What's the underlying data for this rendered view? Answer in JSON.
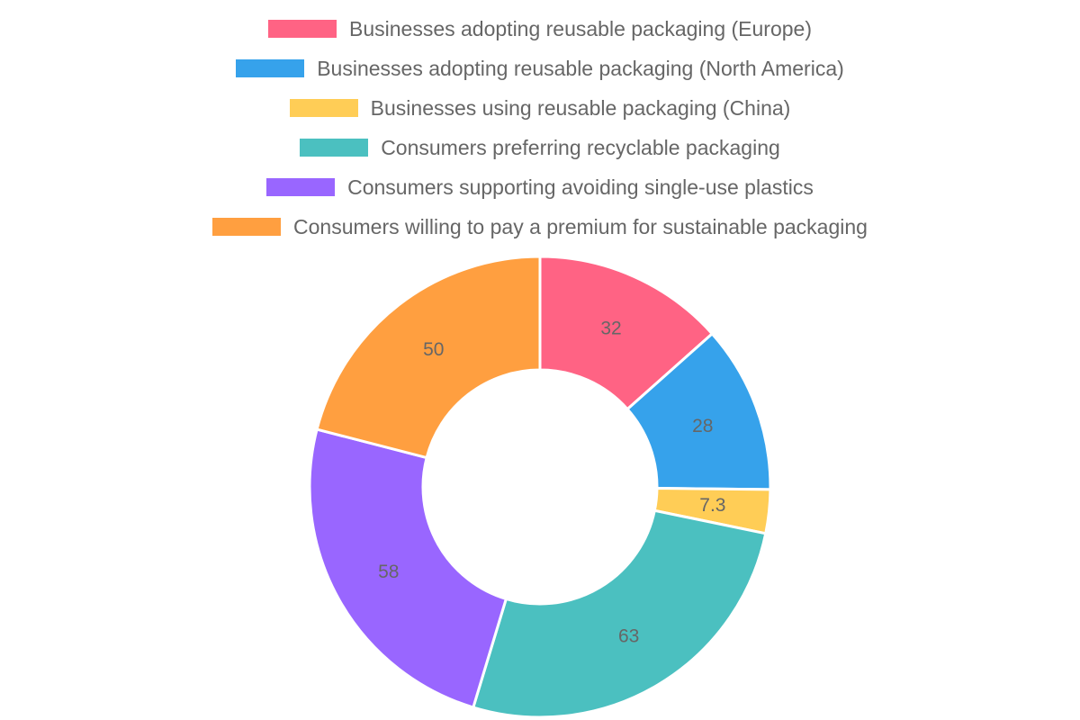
{
  "chart_data": {
    "type": "doughnut",
    "title": "",
    "legend_position": "top",
    "categories": [
      "Businesses adopting reusable packaging (Europe)",
      "Businesses adopting reusable packaging (North America)",
      "Businesses using reusable packaging (China)",
      "Consumers preferring recyclable packaging",
      "Consumers supporting avoiding single-use plastics",
      "Consumers willing to pay a premium for sustainable packaging"
    ],
    "values": [
      32,
      28,
      7.3,
      63,
      58,
      50
    ],
    "value_labels": [
      "32",
      "28",
      "7.3",
      "63",
      "58",
      "50"
    ],
    "colors": [
      "#ff6384",
      "#36a2eb",
      "#ffcd56",
      "#4bc0c0",
      "#9966ff",
      "#ff9f40"
    ]
  },
  "legend": {
    "items": [
      {
        "label": "Businesses adopting reusable packaging (Europe)",
        "color": "#ff6384"
      },
      {
        "label": "Businesses adopting reusable packaging (North America)",
        "color": "#36a2eb"
      },
      {
        "label": "Businesses using reusable packaging (China)",
        "color": "#ffcd56"
      },
      {
        "label": "Consumers preferring recyclable packaging",
        "color": "#4bc0c0"
      },
      {
        "label": "Consumers supporting avoiding single-use plastics",
        "color": "#9966ff"
      },
      {
        "label": "Consumers willing to pay a premium for sustainable packaging",
        "color": "#ff9f40"
      }
    ]
  }
}
